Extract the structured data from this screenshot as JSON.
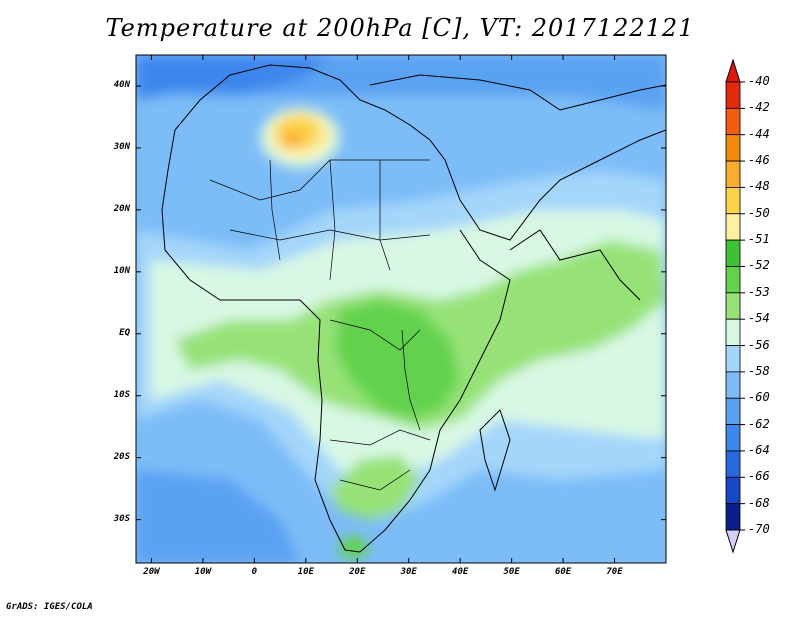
{
  "title": "Temperature at 200hPa [C], VT: 2017122121",
  "footer": "GrADS: IGES/COLA",
  "map": {
    "lon_range": [
      -23,
      80
    ],
    "lat_range": [
      -37,
      45
    ],
    "lat_labels": [
      "40N",
      "30N",
      "20N",
      "10N",
      "EQ",
      "10S",
      "20S",
      "30S"
    ],
    "lat_values": [
      40,
      30,
      20,
      10,
      0,
      -10,
      -20,
      -30
    ],
    "lon_labels": [
      "20W",
      "10W",
      "0",
      "10E",
      "20E",
      "30E",
      "40E",
      "50E",
      "60E",
      "70E"
    ],
    "lon_values": [
      -20,
      -10,
      0,
      10,
      20,
      30,
      40,
      50,
      60,
      70
    ]
  },
  "colorbar": {
    "labels": [
      "-40",
      "-42",
      "-44",
      "-46",
      "-48",
      "-50",
      "-51",
      "-52",
      "-53",
      "-54",
      "-56",
      "-58",
      "-60",
      "-62",
      "-64",
      "-66",
      "-68",
      "-70"
    ],
    "colors": [
      "#e52a0c",
      "#f25c0e",
      "#f58a0a",
      "#f9ac2e",
      "#fbd24a",
      "#fdf0a2",
      "#3dc234",
      "#62d24d",
      "#96e277",
      "#d8f8e4",
      "#a4d6fa",
      "#7cbcf7",
      "#5aa1f2",
      "#3d86ed",
      "#2868df",
      "#1848c8",
      "#0a1f8a"
    ],
    "over_color": "#e0180c",
    "under_color": "#d8d0f8"
  }
}
